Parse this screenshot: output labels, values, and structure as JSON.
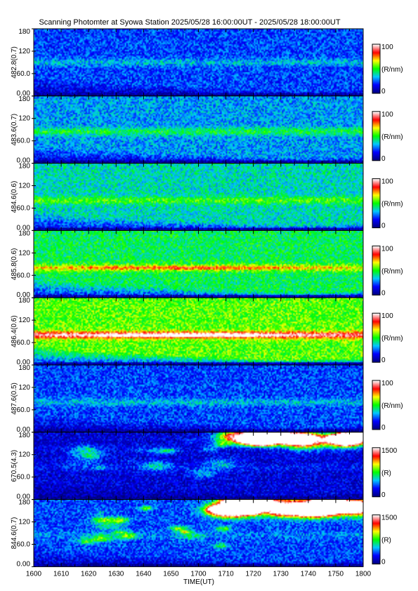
{
  "chart_data": {
    "type": "heatmap",
    "title": "Scanning Photomter at Syowa Station 2025/05/28 16:00:00UT - 2025/05/28 18:00:00UT",
    "xlabel": "TIME(UT)",
    "x_ticks": [
      "1600",
      "1610",
      "1620",
      "1630",
      "1640",
      "1650",
      "1700",
      "1710",
      "1720",
      "1730",
      "1740",
      "1750",
      "1800"
    ],
    "y_ticks": [
      "0.00",
      "60.0",
      "120",
      "180"
    ],
    "ylim": [
      0,
      180
    ],
    "colormap": [
      "#000080",
      "#0000ff",
      "#00c8ff",
      "#00ff00",
      "#ffff00",
      "#ff0000",
      "#ffffff"
    ],
    "panels": [
      {
        "ylabel": "482.8(0.7)",
        "unit": "(R/nm)",
        "cmin": "0",
        "cmax": "100",
        "base": 0.22,
        "bandY": 90,
        "bandI": 0.12,
        "peakY": null,
        "peakI": 0,
        "brightBlobs": false
      },
      {
        "ylabel": "483.6(0.7)",
        "unit": "(R/nm)",
        "cmin": "0",
        "cmax": "100",
        "base": 0.3,
        "bandY": 85,
        "bandI": 0.18,
        "peakY": null,
        "peakI": 0,
        "brightBlobs": false
      },
      {
        "ylabel": "484.6(0.6)",
        "unit": "(R/nm)",
        "cmin": "0",
        "cmax": "100",
        "base": 0.38,
        "bandY": 80,
        "bandI": 0.15,
        "peakY": null,
        "peakI": 0,
        "brightBlobs": false
      },
      {
        "ylabel": "485.8(0.6)",
        "unit": "(R/nm)",
        "cmin": "0",
        "cmax": "100",
        "base": 0.45,
        "bandY": 80,
        "bandI": 0.2,
        "peakY": 80,
        "peakI": 0.18,
        "brightBlobs": false
      },
      {
        "ylabel": "486.4(0.6)",
        "unit": "(R/nm)",
        "cmin": "0",
        "cmax": "100",
        "base": 0.55,
        "bandY": 80,
        "bandI": 0.35,
        "peakY": 80,
        "peakI": 0.3,
        "brightBlobs": false
      },
      {
        "ylabel": "487.6(0.5)",
        "unit": "(R/nm)",
        "cmin": "0",
        "cmax": "100",
        "base": 0.22,
        "bandY": 80,
        "bandI": 0.12,
        "peakY": null,
        "peakI": 0,
        "brightBlobs": false
      },
      {
        "ylabel": "670.5(4.3)",
        "unit": "(R)",
        "cmin": "0",
        "cmax": "1500",
        "base": 0.12,
        "bandY": 85,
        "bandI": 0.05,
        "peakY": null,
        "peakI": 0,
        "brightBlobs": true,
        "blobStrength": 0.55
      },
      {
        "ylabel": "844.6(0.7)",
        "unit": "(R)",
        "cmin": "0",
        "cmax": "1500",
        "base": 0.22,
        "bandY": 85,
        "bandI": 0.06,
        "peakY": null,
        "peakI": 0,
        "brightBlobs": true,
        "blobStrength": 0.75
      }
    ]
  }
}
